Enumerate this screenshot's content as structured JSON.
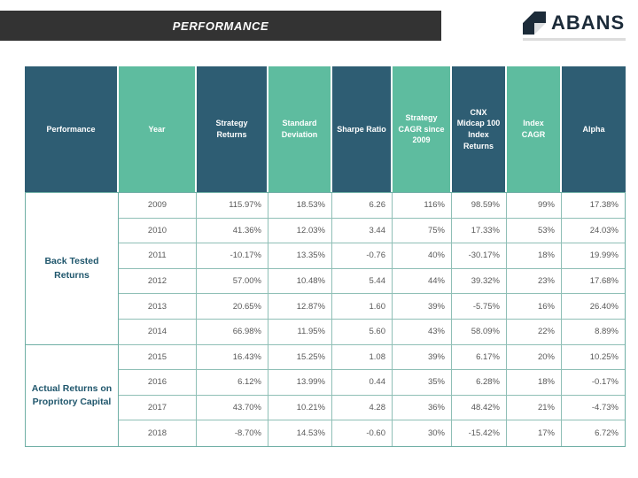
{
  "slide": {
    "title": "PERFORMANCE",
    "brand": {
      "name": "ABANS"
    }
  },
  "colors": {
    "titlebar_bg": "#333333",
    "header_dark": "#2e5d73",
    "header_light": "#5ebc9f",
    "table_border": "#6fafa5",
    "group_label_text": "#1f566c",
    "cell_text": "#595959",
    "brand_text": "#1c2b39"
  },
  "table": {
    "columns": [
      {
        "label": "Performance",
        "tone": "dark"
      },
      {
        "label": "Year",
        "tone": "light"
      },
      {
        "label": "Strategy Returns",
        "tone": "dark"
      },
      {
        "label": "Standard Deviation",
        "tone": "light"
      },
      {
        "label": "Sharpe Ratio",
        "tone": "dark"
      },
      {
        "label": "Strategy CAGR since 2009",
        "tone": "light"
      },
      {
        "label": "CNX Midcap 100 Index Returns",
        "tone": "dark"
      },
      {
        "label": "Index CAGR",
        "tone": "light"
      },
      {
        "label": "Alpha",
        "tone": "dark"
      }
    ],
    "row_groups": [
      {
        "label": "Back Tested Returns",
        "rows": [
          [
            "2009",
            "115.97%",
            "18.53%",
            "6.26",
            "116%",
            "98.59%",
            "99%",
            "17.38%"
          ],
          [
            "2010",
            "41.36%",
            "12.03%",
            "3.44",
            "75%",
            "17.33%",
            "53%",
            "24.03%"
          ],
          [
            "2011",
            "-10.17%",
            "13.35%",
            "-0.76",
            "40%",
            "-30.17%",
            "18%",
            "19.99%"
          ],
          [
            "2012",
            "57.00%",
            "10.48%",
            "5.44",
            "44%",
            "39.32%",
            "23%",
            "17.68%"
          ],
          [
            "2013",
            "20.65%",
            "12.87%",
            "1.60",
            "39%",
            "-5.75%",
            "16%",
            "26.40%"
          ],
          [
            "2014",
            "66.98%",
            "11.95%",
            "5.60",
            "43%",
            "58.09%",
            "22%",
            "8.89%"
          ]
        ]
      },
      {
        "label": "Actual Returns on Propritory Capital",
        "rows": [
          [
            "2015",
            "16.43%",
            "15.25%",
            "1.08",
            "39%",
            "6.17%",
            "20%",
            "10.25%"
          ],
          [
            "2016",
            "6.12%",
            "13.99%",
            "0.44",
            "35%",
            "6.28%",
            "18%",
            "-0.17%"
          ],
          [
            "2017",
            "43.70%",
            "10.21%",
            "4.28",
            "36%",
            "48.42%",
            "21%",
            "-4.73%"
          ],
          [
            "2018",
            "-8.70%",
            "14.53%",
            "-0.60",
            "30%",
            "-15.42%",
            "17%",
            "6.72%"
          ]
        ]
      }
    ]
  }
}
